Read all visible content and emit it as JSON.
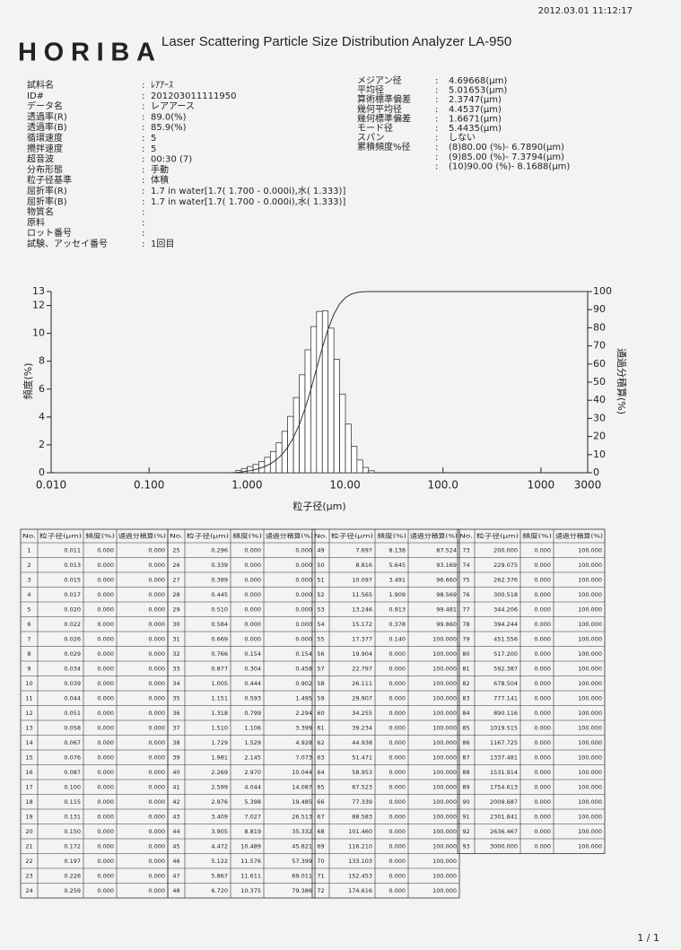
{
  "header": {
    "timestamp": "2012.03.01 11:12:17",
    "logo": "HORIBA",
    "title": "Laser Scattering Particle Size Distribution Analyzer LA-950"
  },
  "separator": ":",
  "sample_info": [
    {
      "label": "試料名",
      "value": "ﾚｱｱｰｽ"
    },
    {
      "label": "ID#",
      "value": "201203011111950"
    },
    {
      "label": "データ名",
      "value": "レアアース"
    },
    {
      "label": "透過率(R)",
      "value": "89.0(%)"
    },
    {
      "label": "透過率(B)",
      "value": "85.9(%)"
    },
    {
      "label": "循環速度",
      "value": "5"
    },
    {
      "label": "攪拌速度",
      "value": "5"
    },
    {
      "label": "超音波",
      "value": "00:30 (7)"
    },
    {
      "label": "分布形態",
      "value": "手動"
    },
    {
      "label": "粒子径基準",
      "value": "体積"
    },
    {
      "label": "屈折率(R)",
      "value": "1.7 in water[1.7( 1.700 -  0.000i),水( 1.333)]"
    },
    {
      "label": "屈折率(B)",
      "value": "1.7 in water[1.7( 1.700 -  0.000i),水( 1.333)]"
    },
    {
      "label": "物質名"
    },
    {
      "label": "原料"
    },
    {
      "label": "ロット番号"
    },
    {
      "label": "試験、アッセイ番号",
      "value": "1回目"
    }
  ],
  "results": [
    {
      "label": "メジアン径",
      "value": "4.69668(μm)"
    },
    {
      "label": "平均径",
      "value": "5.01653(μm)"
    },
    {
      "label": "算術標準偏差",
      "value": "2.3747(μm)"
    },
    {
      "label": "幾何平均径",
      "value": "4.4537(μm)"
    },
    {
      "label": "幾何標準偏差",
      "value": "1.6671(μm)"
    },
    {
      "label": "モード径",
      "value": "5.4435(μm)"
    },
    {
      "label": "スパン",
      "value": "しない"
    },
    {
      "label": "累積頻度%径",
      "value": "(8)80.00 (%)-  6.7890(μm)"
    },
    {
      "value": "(9)85.00 (%)-  7.3794(μm)"
    },
    {
      "value": "(10)90.00 (%)-  8.1688(μm)"
    }
  ],
  "chart": {
    "type": "histogram",
    "log_x": true,
    "xlabel": "粒子径(μm)",
    "ylabel": "頻度(%)",
    "y2label": "通過分積算(%)",
    "xlim": [
      0.01,
      3000
    ],
    "ylim": [
      0,
      13
    ],
    "y2lim": [
      0,
      100
    ],
    "xticks": [
      {
        "value": 0.01,
        "label": "0.010"
      },
      {
        "value": 0.1,
        "label": "0.100"
      },
      {
        "value": 1,
        "label": "1.000"
      },
      {
        "value": 10,
        "label": "10.00"
      },
      {
        "value": 100,
        "label": "100.0"
      },
      1000,
      3000
    ],
    "yticks": [
      0,
      2,
      4,
      6,
      8,
      10,
      12,
      13
    ],
    "y2ticks": [
      0,
      10,
      20,
      30,
      40,
      50,
      60,
      70,
      80,
      90,
      100
    ]
  },
  "table": {
    "columns": [
      "No.",
      "粒子径(μm)",
      "頻度(%)",
      "通過分積算(%)"
    ],
    "rows": [
      [
        "1",
        "0.011",
        "0.000",
        "0.000"
      ],
      [
        "2",
        "0.013",
        "0.000",
        "0.000"
      ],
      [
        "3",
        "0.015",
        "0.000",
        "0.000"
      ],
      [
        "4",
        "0.017",
        "0.000",
        "0.000"
      ],
      [
        "5",
        "0.020",
        "0.000",
        "0.000"
      ],
      [
        "6",
        "0.022",
        "0.000",
        "0.000"
      ],
      [
        "7",
        "0.026",
        "0.000",
        "0.000"
      ],
      [
        "8",
        "0.029",
        "0.000",
        "0.000"
      ],
      [
        "9",
        "0.034",
        "0.000",
        "0.000"
      ],
      [
        "10",
        "0.039",
        "0.000",
        "0.000"
      ],
      [
        "11",
        "0.044",
        "0.000",
        "0.000"
      ],
      [
        "12",
        "0.051",
        "0.000",
        "0.000"
      ],
      [
        "13",
        "0.058",
        "0.000",
        "0.000"
      ],
      [
        "14",
        "0.067",
        "0.000",
        "0.000"
      ],
      [
        "15",
        "0.076",
        "0.000",
        "0.000"
      ],
      [
        "16",
        "0.087",
        "0.000",
        "0.000"
      ],
      [
        "17",
        "0.100",
        "0.000",
        "0.000"
      ],
      [
        "18",
        "0.115",
        "0.000",
        "0.000"
      ],
      [
        "19",
        "0.131",
        "0.000",
        "0.000"
      ],
      [
        "20",
        "0.150",
        "0.000",
        "0.000"
      ],
      [
        "21",
        "0.172",
        "0.000",
        "0.000"
      ],
      [
        "22",
        "0.197",
        "0.000",
        "0.000"
      ],
      [
        "23",
        "0.226",
        "0.000",
        "0.000"
      ],
      [
        "24",
        "0.259",
        "0.000",
        "0.000"
      ],
      [
        "25",
        "0.296",
        "0.000",
        "0.000"
      ],
      [
        "26",
        "0.339",
        "0.000",
        "0.000"
      ],
      [
        "27",
        "0.389",
        "0.000",
        "0.000"
      ],
      [
        "28",
        "0.445",
        "0.000",
        "0.000"
      ],
      [
        "29",
        "0.510",
        "0.000",
        "0.000"
      ],
      [
        "30",
        "0.584",
        "0.000",
        "0.000"
      ],
      [
        "31",
        "0.669",
        "0.000",
        "0.000"
      ],
      [
        "32",
        "0.766",
        "0.154",
        "0.154"
      ],
      [
        "33",
        "0.877",
        "0.304",
        "0.458"
      ],
      [
        "34",
        "1.005",
        "0.444",
        "0.902"
      ],
      [
        "35",
        "1.151",
        "0.593",
        "1.495"
      ],
      [
        "36",
        "1.318",
        "0.799",
        "2.294"
      ],
      [
        "37",
        "1.510",
        "1.106",
        "3.399"
      ],
      [
        "38",
        "1.729",
        "1.529",
        "4.928"
      ],
      [
        "39",
        "1.981",
        "2.145",
        "7.073"
      ],
      [
        "40",
        "2.269",
        "2.970",
        "10.044"
      ],
      [
        "41",
        "2.599",
        "4.044",
        "14.087"
      ],
      [
        "42",
        "2.976",
        "5.398",
        "19.485"
      ],
      [
        "43",
        "3.409",
        "7.027",
        "26.513"
      ],
      [
        "44",
        "3.905",
        "8.819",
        "35.332"
      ],
      [
        "45",
        "4.472",
        "10.489",
        "45.821"
      ],
      [
        "46",
        "5.122",
        "11.576",
        "57.399"
      ],
      [
        "47",
        "5.867",
        "11.611",
        "69.011"
      ],
      [
        "48",
        "6.720",
        "10.375",
        "79.386"
      ],
      [
        "49",
        "7.697",
        "8.138",
        "87.524"
      ],
      [
        "50",
        "8.816",
        "5.645",
        "93.169"
      ],
      [
        "51",
        "10.097",
        "3.491",
        "96.660"
      ],
      [
        "52",
        "11.565",
        "1.909",
        "98.569"
      ],
      [
        "53",
        "13.246",
        "0.913",
        "99.481"
      ],
      [
        "54",
        "15.172",
        "0.378",
        "99.860"
      ],
      [
        "55",
        "17.377",
        "0.140",
        "100.000"
      ],
      [
        "56",
        "19.904",
        "0.000",
        "100.000"
      ],
      [
        "57",
        "22.797",
        "0.000",
        "100.000"
      ],
      [
        "58",
        "26.111",
        "0.000",
        "100.000"
      ],
      [
        "59",
        "29.907",
        "0.000",
        "100.000"
      ],
      [
        "60",
        "34.255",
        "0.000",
        "100.000"
      ],
      [
        "61",
        "39.234",
        "0.000",
        "100.000"
      ],
      [
        "62",
        "44.938",
        "0.000",
        "100.000"
      ],
      [
        "63",
        "51.471",
        "0.000",
        "100.000"
      ],
      [
        "64",
        "58.953",
        "0.000",
        "100.000"
      ],
      [
        "65",
        "67.523",
        "0.000",
        "100.000"
      ],
      [
        "66",
        "77.339",
        "0.000",
        "100.000"
      ],
      [
        "67",
        "88.583",
        "0.000",
        "100.000"
      ],
      [
        "68",
        "101.460",
        "0.000",
        "100.000"
      ],
      [
        "69",
        "116.210",
        "0.000",
        "100.000"
      ],
      [
        "70",
        "133.103",
        "0.000",
        "100.000"
      ],
      [
        "71",
        "152.453",
        "0.000",
        "100.000"
      ],
      [
        "72",
        "174.616",
        "0.000",
        "100.000"
      ],
      [
        "73",
        "200.000",
        "0.000",
        "100.000"
      ],
      [
        "74",
        "229.075",
        "0.000",
        "100.000"
      ],
      [
        "75",
        "262.376",
        "0.000",
        "100.000"
      ],
      [
        "76",
        "300.518",
        "0.000",
        "100.000"
      ],
      [
        "77",
        "344.206",
        "0.000",
        "100.000"
      ],
      [
        "78",
        "394.244",
        "0.000",
        "100.000"
      ],
      [
        "79",
        "451.556",
        "0.000",
        "100.000"
      ],
      [
        "80",
        "517.200",
        "0.000",
        "100.000"
      ],
      [
        "81",
        "592.387",
        "0.000",
        "100.000"
      ],
      [
        "82",
        "678.504",
        "0.000",
        "100.000"
      ],
      [
        "83",
        "777.141",
        "0.000",
        "100.000"
      ],
      [
        "84",
        "890.116",
        "0.000",
        "100.000"
      ],
      [
        "85",
        "1019.515",
        "0.000",
        "100.000"
      ],
      [
        "86",
        "1167.725",
        "0.000",
        "100.000"
      ],
      [
        "87",
        "1337.481",
        "0.000",
        "100.000"
      ],
      [
        "88",
        "1531.914",
        "0.000",
        "100.000"
      ],
      [
        "89",
        "1754.613",
        "0.000",
        "100.000"
      ],
      [
        "90",
        "2009.687",
        "0.000",
        "100.000"
      ],
      [
        "91",
        "2301.841",
        "0.000",
        "100.000"
      ],
      [
        "92",
        "2636.467",
        "0.000",
        "100.000"
      ],
      [
        "93",
        "3000.000",
        "0.000",
        "100.000"
      ]
    ]
  },
  "footer": {
    "page": "1 / 1"
  }
}
